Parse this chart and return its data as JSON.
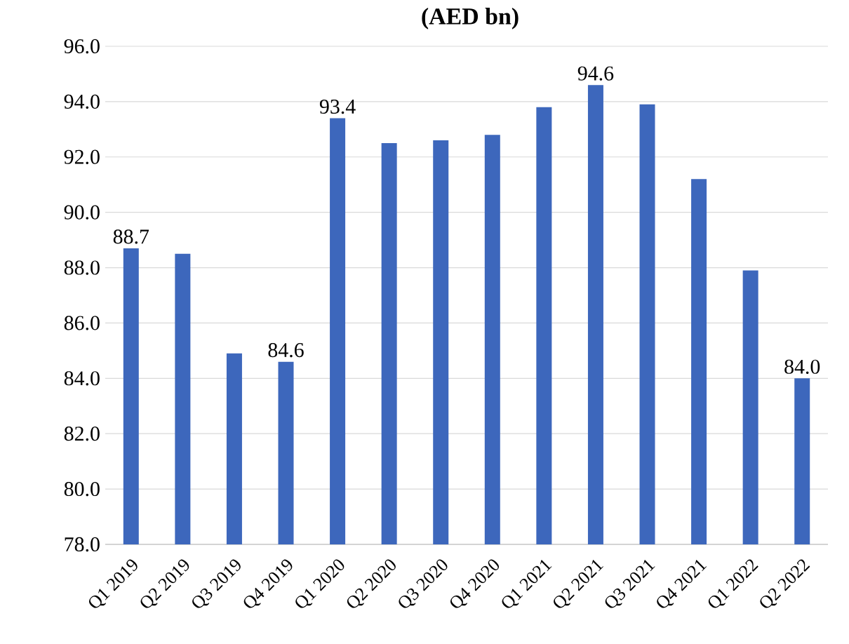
{
  "chart_data": {
    "type": "bar",
    "title": "(AED bn)",
    "categories": [
      "Q1 2019",
      "Q2 2019",
      "Q3 2019",
      "Q4 2019",
      "Q1 2020",
      "Q2 2020",
      "Q3 2020",
      "Q4 2020",
      "Q1 2021",
      "Q2 2021",
      "Q3 2021",
      "Q4 2021",
      "Q1 2022",
      "Q2 2022"
    ],
    "values": [
      88.7,
      88.5,
      84.9,
      84.6,
      93.4,
      92.5,
      92.6,
      92.8,
      93.8,
      94.6,
      93.9,
      91.2,
      87.9,
      84.0
    ],
    "value_labels": [
      "88.7",
      null,
      null,
      "84.6",
      "93.4",
      null,
      null,
      null,
      null,
      "94.6",
      null,
      null,
      null,
      "84.0"
    ],
    "color": "#3d67bc",
    "ylim": [
      78,
      96
    ],
    "yticks": [
      {
        "value": 78,
        "label": "78.0"
      },
      {
        "value": 80,
        "label": "80.0"
      },
      {
        "value": 82,
        "label": "82.0"
      },
      {
        "value": 84,
        "label": "84.0"
      },
      {
        "value": 86,
        "label": "86.0"
      },
      {
        "value": 88,
        "label": "88.0"
      },
      {
        "value": 90,
        "label": "90.0"
      },
      {
        "value": 92,
        "label": "92.0"
      },
      {
        "value": 94,
        "label": "94.0"
      },
      {
        "value": 96,
        "label": "96.0"
      }
    ],
    "grid": "y"
  }
}
